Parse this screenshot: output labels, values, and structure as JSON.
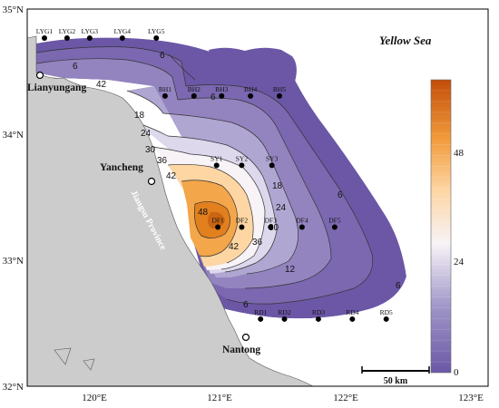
{
  "map": {
    "sea_label": "Yellow Sea",
    "province_label": "Jiangsu Province",
    "scale_label": "50 km"
  },
  "axes": {
    "lat_ticks": [
      "35°N",
      "34°N",
      "33°N",
      "32°N"
    ],
    "lon_ticks": [
      "120°E",
      "121°E",
      "122°E",
      "123°E"
    ]
  },
  "cities": [
    {
      "name": "Lianyungang"
    },
    {
      "name": "Yancheng"
    },
    {
      "name": "Nantong"
    }
  ],
  "stations": [
    {
      "name": "LYG1",
      "lon": 119.61,
      "lat": 34.77
    },
    {
      "name": "LYG2",
      "lon": 119.79,
      "lat": 34.77
    },
    {
      "name": "LYG3",
      "lon": 119.97,
      "lat": 34.77
    },
    {
      "name": "LYG4",
      "lon": 120.23,
      "lat": 34.77
    },
    {
      "name": "LYG5",
      "lon": 120.5,
      "lat": 34.77
    },
    {
      "name": "BH1",
      "lon": 120.57,
      "lat": 34.31
    },
    {
      "name": "BH2",
      "lon": 120.8,
      "lat": 34.31
    },
    {
      "name": "BH3",
      "lon": 121.02,
      "lat": 34.31
    },
    {
      "name": "BH4",
      "lon": 121.25,
      "lat": 34.31
    },
    {
      "name": "BH5",
      "lon": 121.48,
      "lat": 34.31
    },
    {
      "name": "SY1",
      "lon": 120.98,
      "lat": 33.76
    },
    {
      "name": "SY2",
      "lon": 121.18,
      "lat": 33.76
    },
    {
      "name": "SY3",
      "lon": 121.42,
      "lat": 33.76
    },
    {
      "name": "DF1",
      "lon": 120.99,
      "lat": 33.27
    },
    {
      "name": "DF2",
      "lon": 121.18,
      "lat": 33.27
    },
    {
      "name": "DF3",
      "lon": 121.41,
      "lat": 33.27
    },
    {
      "name": "DF4",
      "lon": 121.66,
      "lat": 33.27
    },
    {
      "name": "DF5",
      "lon": 121.92,
      "lat": 33.27
    },
    {
      "name": "RD1",
      "lon": 121.33,
      "lat": 32.54
    },
    {
      "name": "RD2",
      "lon": 121.52,
      "lat": 32.54
    },
    {
      "name": "RD3",
      "lon": 121.79,
      "lat": 32.54
    },
    {
      "name": "RD4",
      "lon": 122.06,
      "lat": 32.54
    },
    {
      "name": "RD5",
      "lon": 122.33,
      "lat": 32.54
    }
  ],
  "contour_levels": [
    "6",
    "12",
    "18",
    "24",
    "30",
    "36",
    "42",
    "48"
  ],
  "colorbar": {
    "min": 0,
    "max": 54,
    "ticks": [
      "48",
      "24",
      "0"
    ],
    "colors": {
      "low": "#6b57a6",
      "mid": "#f7f3f7",
      "high": "#c24d09"
    }
  },
  "colors": {
    "land": "#cccccc",
    "sea": "#ffffff"
  }
}
